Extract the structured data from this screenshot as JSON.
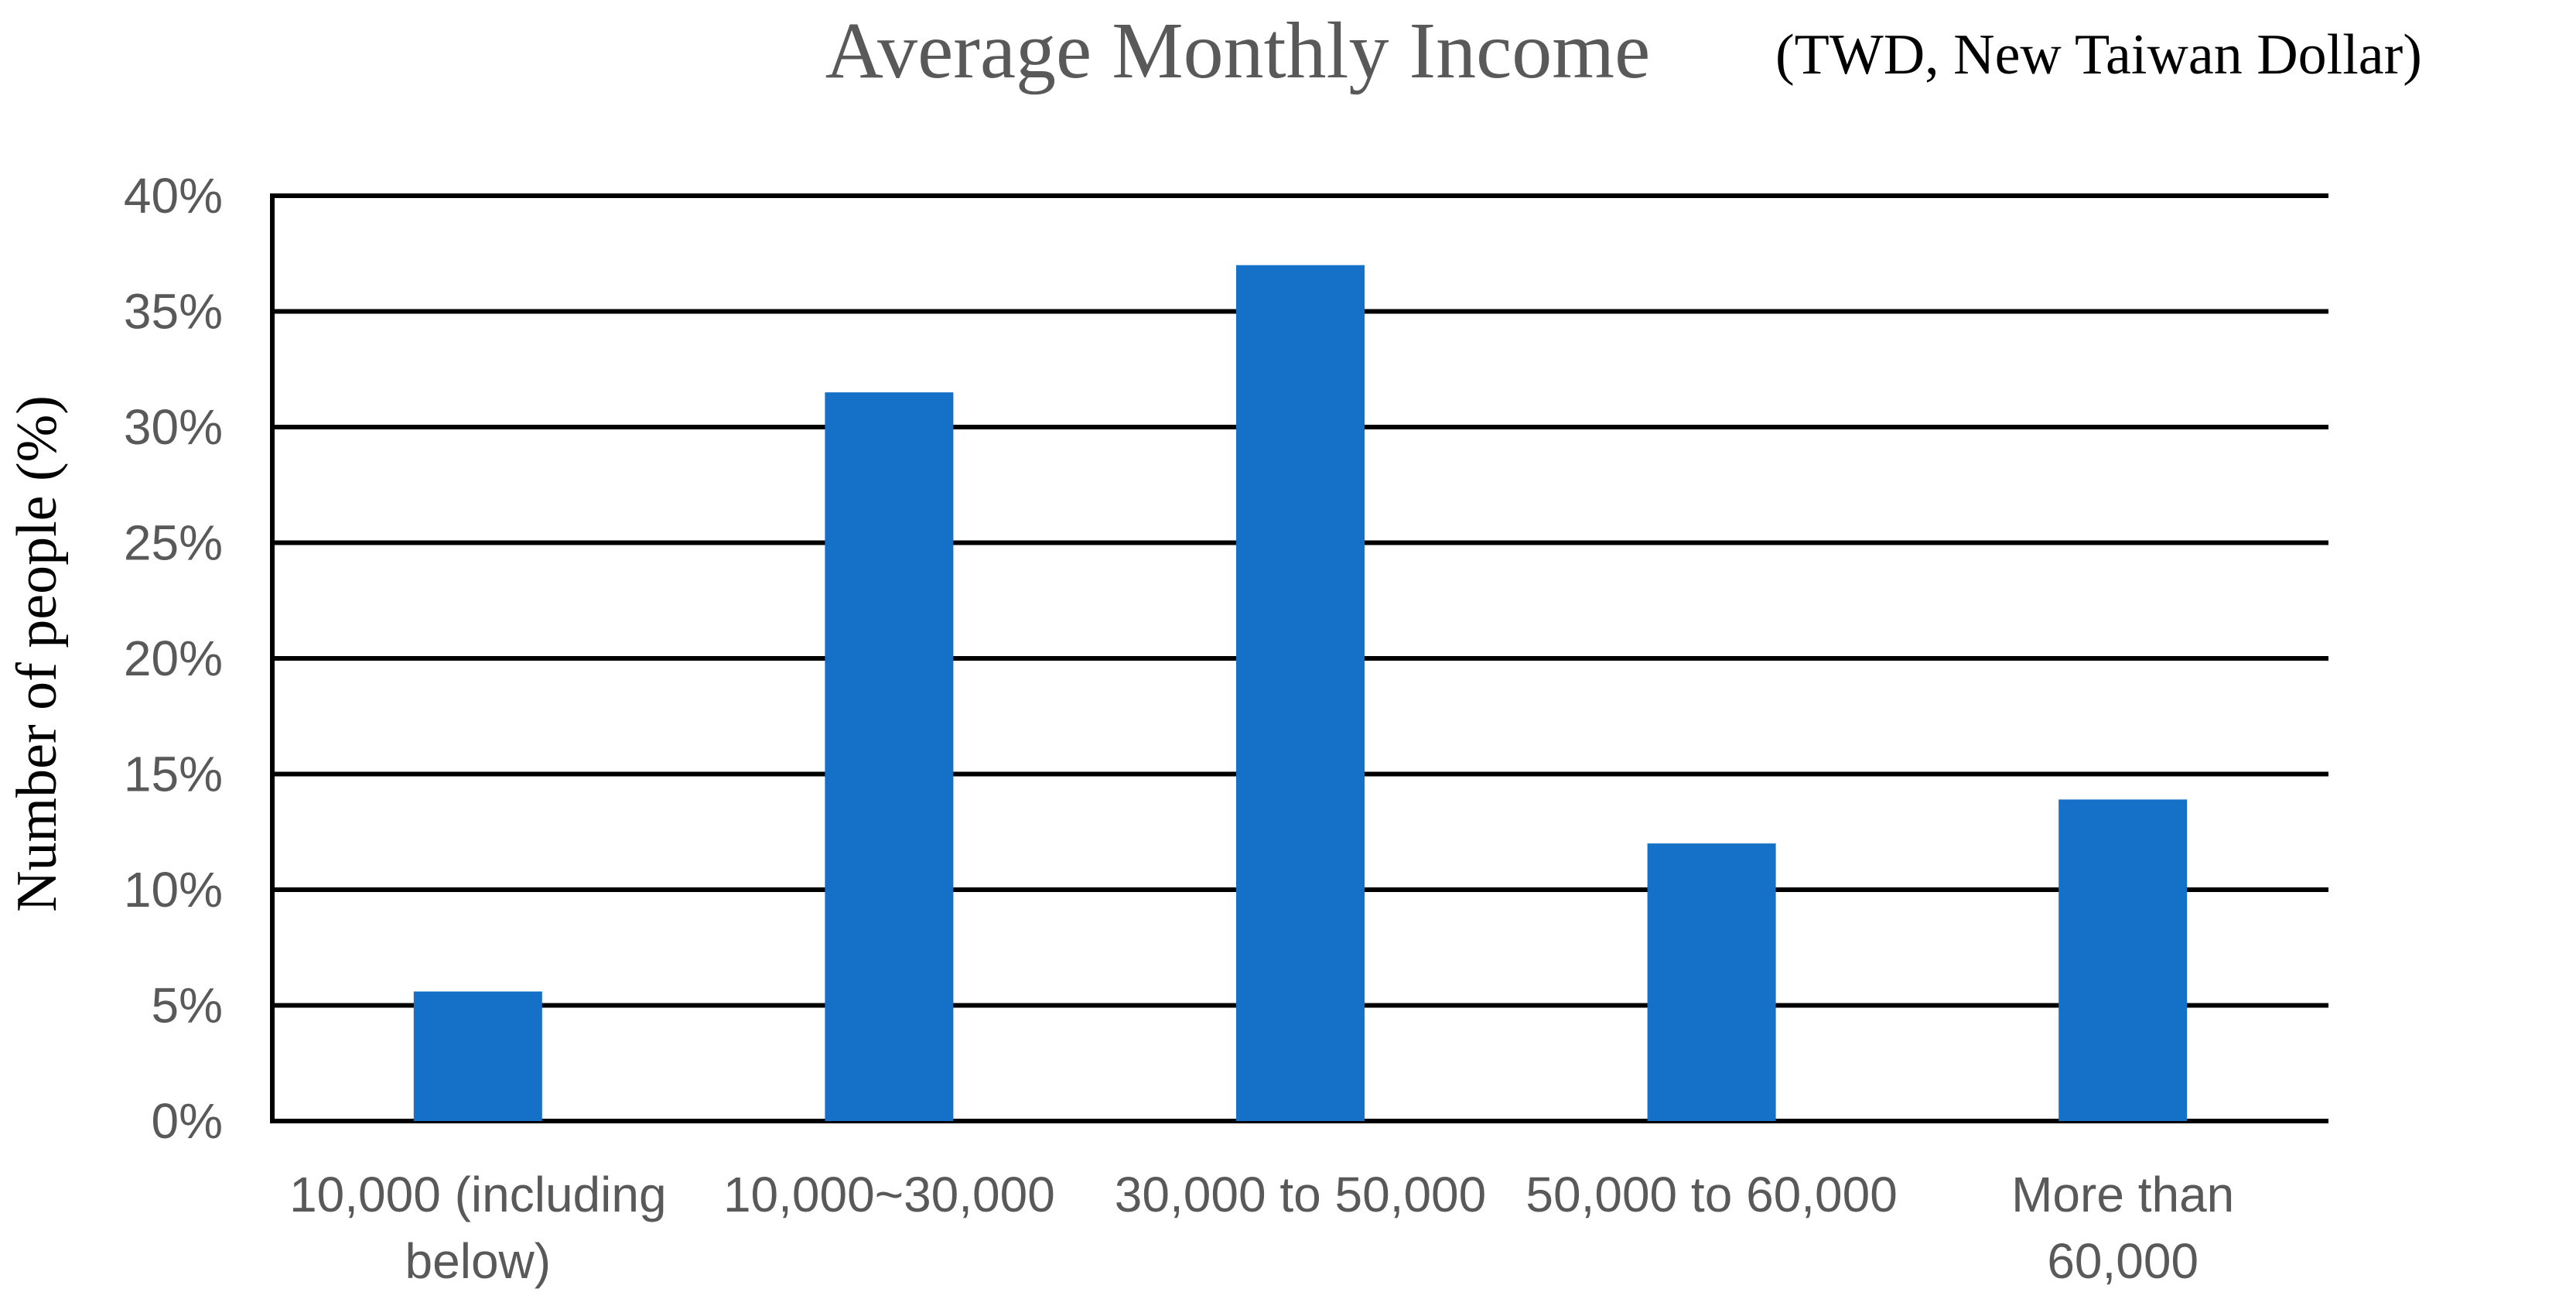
{
  "chart_data": {
    "type": "bar",
    "title": "Average Monthly Income",
    "subtitle": "(TWD, New Taiwan Dollar)",
    "xlabel": "",
    "ylabel": "Number of people (%)",
    "categories": [
      "10,000 (including below)",
      "10,000~30,000",
      "30,000 to 50,000",
      "50,000 to 60,000",
      "More than 60,000"
    ],
    "category_lines": [
      [
        "10,000 (including",
        "below)"
      ],
      [
        "10,000~30,000"
      ],
      [
        "30,000 to 50,000"
      ],
      [
        "50,000 to 60,000"
      ],
      [
        "More than",
        "60,000"
      ]
    ],
    "values": [
      5.6,
      31.5,
      37.0,
      12.0,
      13.9
    ],
    "ylim": [
      0,
      40
    ],
    "yticks": [
      0,
      5,
      10,
      15,
      20,
      25,
      30,
      35,
      40
    ],
    "ytick_labels": [
      "0%",
      "5%",
      "10%",
      "15%",
      "20%",
      "25%",
      "30%",
      "35%",
      "40%"
    ],
    "grid": true,
    "legend": "none",
    "colors": {
      "bar": "#1570C8",
      "grid": "#000000",
      "title": "#595959",
      "subtitle": "#000000",
      "tick_text": "#595959",
      "ylabel": "#000000"
    }
  }
}
